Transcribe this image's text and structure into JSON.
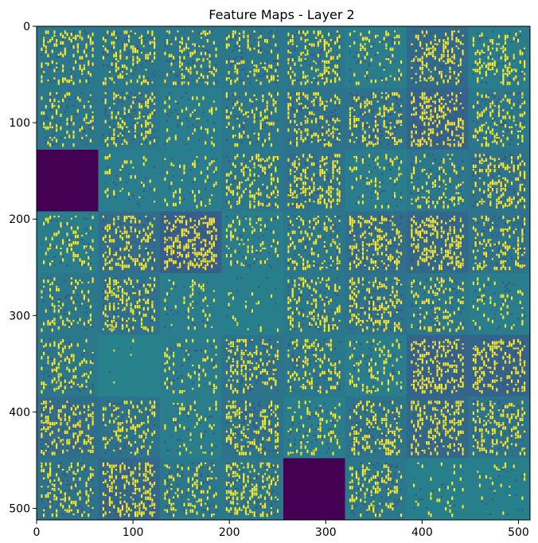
{
  "chart_data": {
    "type": "heatmap",
    "title": "Feature Maps - Layer 2",
    "xlabel": "",
    "ylabel": "",
    "colormap": "viridis",
    "image_extent": [
      512,
      512
    ],
    "xlim": [
      0,
      512
    ],
    "ylim": [
      512,
      0
    ],
    "xticks": [
      0,
      100,
      200,
      300,
      400,
      500
    ],
    "yticks": [
      0,
      100,
      200,
      300,
      400,
      500
    ],
    "grid": false,
    "mosaic": {
      "rows": 8,
      "cols": 8,
      "tile_size": 64
    },
    "tiles": [
      [
        {
          "level": 0.4,
          "density": 0.22
        },
        {
          "level": 0.4,
          "density": 0.25
        },
        {
          "level": 0.4,
          "density": 0.2
        },
        {
          "level": 0.4,
          "density": 0.22
        },
        {
          "level": 0.4,
          "density": 0.3
        },
        {
          "level": 0.42,
          "density": 0.15
        },
        {
          "level": 0.35,
          "density": 0.32
        },
        {
          "level": 0.42,
          "density": 0.26
        }
      ],
      [
        {
          "level": 0.4,
          "density": 0.22
        },
        {
          "level": 0.4,
          "density": 0.26
        },
        {
          "level": 0.42,
          "density": 0.1
        },
        {
          "level": 0.4,
          "density": 0.2
        },
        {
          "level": 0.38,
          "density": 0.32
        },
        {
          "level": 0.38,
          "density": 0.3
        },
        {
          "level": 0.32,
          "density": 0.45
        },
        {
          "level": 0.4,
          "density": 0.28
        }
      ],
      [
        {
          "level": 0.0,
          "density": 0.0
        },
        {
          "level": 0.42,
          "density": 0.08
        },
        {
          "level": 0.42,
          "density": 0.12
        },
        {
          "level": 0.4,
          "density": 0.28
        },
        {
          "level": 0.38,
          "density": 0.3
        },
        {
          "level": 0.42,
          "density": 0.15
        },
        {
          "level": 0.4,
          "density": 0.22
        },
        {
          "level": 0.38,
          "density": 0.3
        }
      ],
      [
        {
          "level": 0.42,
          "density": 0.15
        },
        {
          "level": 0.36,
          "density": 0.32
        },
        {
          "level": 0.3,
          "density": 0.5
        },
        {
          "level": 0.42,
          "density": 0.18
        },
        {
          "level": 0.4,
          "density": 0.28
        },
        {
          "level": 0.36,
          "density": 0.35
        },
        {
          "level": 0.34,
          "density": 0.4
        },
        {
          "level": 0.38,
          "density": 0.3
        }
      ],
      [
        {
          "level": 0.4,
          "density": 0.18
        },
        {
          "level": 0.38,
          "density": 0.3
        },
        {
          "level": 0.42,
          "density": 0.1
        },
        {
          "level": 0.43,
          "density": 0.06
        },
        {
          "level": 0.4,
          "density": 0.28
        },
        {
          "level": 0.38,
          "density": 0.32
        },
        {
          "level": 0.4,
          "density": 0.22
        },
        {
          "level": 0.42,
          "density": 0.12
        }
      ],
      [
        {
          "level": 0.4,
          "density": 0.22
        },
        {
          "level": 0.44,
          "density": 0.02
        },
        {
          "level": 0.42,
          "density": 0.15
        },
        {
          "level": 0.38,
          "density": 0.3
        },
        {
          "level": 0.4,
          "density": 0.26
        },
        {
          "level": 0.42,
          "density": 0.18
        },
        {
          "level": 0.32,
          "density": 0.4
        },
        {
          "level": 0.32,
          "density": 0.4
        }
      ],
      [
        {
          "level": 0.36,
          "density": 0.32
        },
        {
          "level": 0.38,
          "density": 0.26
        },
        {
          "level": 0.42,
          "density": 0.12
        },
        {
          "level": 0.38,
          "density": 0.3
        },
        {
          "level": 0.42,
          "density": 0.15
        },
        {
          "level": 0.38,
          "density": 0.3
        },
        {
          "level": 0.34,
          "density": 0.36
        },
        {
          "level": 0.38,
          "density": 0.3
        }
      ],
      [
        {
          "level": 0.38,
          "density": 0.28
        },
        {
          "level": 0.34,
          "density": 0.38
        },
        {
          "level": 0.4,
          "density": 0.24
        },
        {
          "level": 0.4,
          "density": 0.3
        },
        {
          "level": 0.0,
          "density": 0.0
        },
        {
          "level": 0.4,
          "density": 0.26
        },
        {
          "level": 0.43,
          "density": 0.06
        },
        {
          "level": 0.43,
          "density": 0.05
        }
      ]
    ]
  }
}
